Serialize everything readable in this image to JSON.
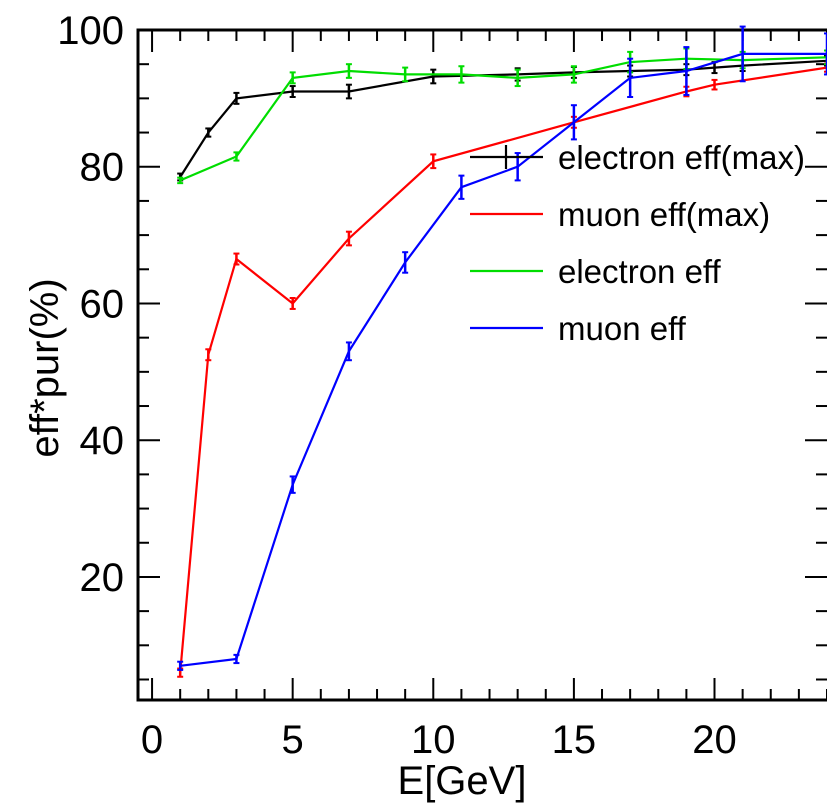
{
  "chart_data": {
    "type": "line",
    "title": "",
    "xlabel": "E[GeV]",
    "ylabel": "eff*pur(%)",
    "xlim": [
      -0.5,
      24
    ],
    "ylim": [
      2,
      100
    ],
    "x_major_ticks": [
      0,
      5,
      10,
      15,
      20
    ],
    "y_major_ticks": [
      20,
      40,
      60,
      80,
      100
    ],
    "x_minor_step": 1,
    "y_minor_step": 5,
    "grid": false,
    "legend_position": "upper-right",
    "series": [
      {
        "name": "electron eff(max)",
        "color": "#000000",
        "x": [
          1,
          2,
          3,
          5,
          7,
          10,
          13,
          15,
          17,
          19,
          20,
          21,
          24
        ],
        "y": [
          78.5,
          85,
          90,
          91,
          91,
          93.2,
          93.5,
          93.8,
          94,
          94.2,
          94.5,
          94.8,
          95.5
        ],
        "err": [
          0.5,
          0.6,
          0.8,
          0.8,
          1.0,
          1.0,
          0.9,
          0.8,
          0.8,
          0.8,
          0.8,
          0.8,
          0.7
        ]
      },
      {
        "name": "muon eff(max)",
        "color": "#ff0000",
        "x": [
          1,
          2,
          3,
          5,
          7,
          10,
          15,
          19,
          20,
          24
        ],
        "y": [
          6,
          52.5,
          66.5,
          60,
          69.5,
          80.8,
          86.5,
          91,
          92,
          94.5
        ],
        "err": [
          0.6,
          0.8,
          0.8,
          0.8,
          1.0,
          1.0,
          0.8,
          0.7,
          0.7,
          0.6
        ]
      },
      {
        "name": "electron eff",
        "color": "#00dd00",
        "x": [
          1,
          3,
          5,
          7,
          9,
          11,
          13,
          15,
          17,
          19,
          21,
          24
        ],
        "y": [
          78,
          81.5,
          93,
          94,
          93.5,
          93.5,
          93,
          93.5,
          95.3,
          95.8,
          95.6,
          96
        ],
        "err": [
          0.4,
          0.6,
          0.8,
          1.0,
          1.0,
          1.2,
          1.2,
          1.2,
          1.5,
          1.5,
          1.2,
          1.0
        ]
      },
      {
        "name": "muon eff",
        "color": "#0000ff",
        "x": [
          1,
          3,
          5,
          7,
          9,
          11,
          13,
          15,
          17,
          19,
          21,
          24
        ],
        "y": [
          7,
          8,
          33.5,
          53,
          66,
          77,
          80,
          86.5,
          93,
          94,
          96.5,
          96.5
        ],
        "err": [
          0.6,
          0.6,
          1.2,
          1.3,
          1.5,
          1.7,
          2.0,
          2.5,
          2.8,
          3.5,
          4.0,
          3.0
        ]
      }
    ]
  }
}
